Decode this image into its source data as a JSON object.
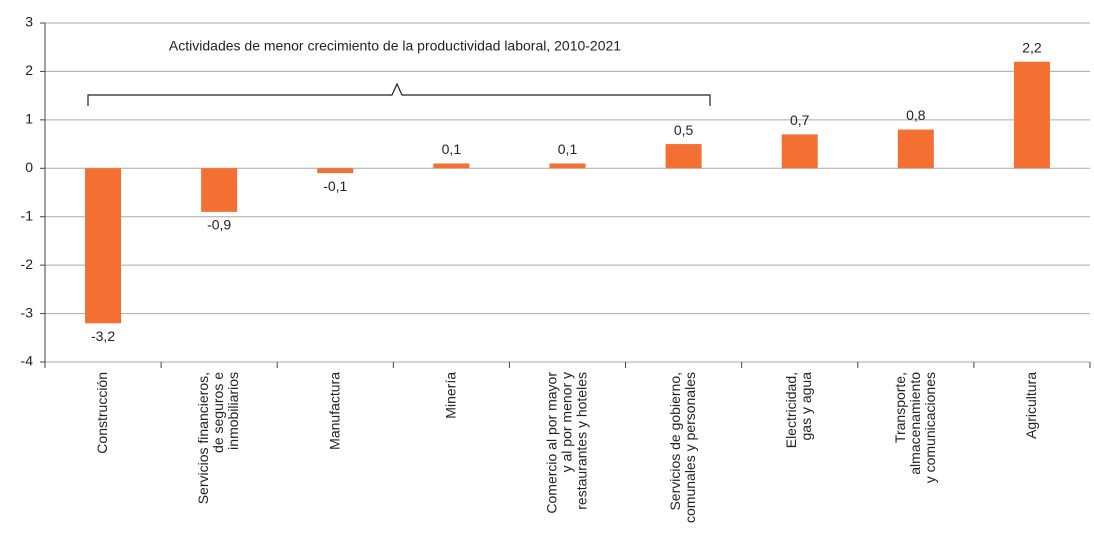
{
  "chart_data": {
    "type": "bar",
    "annotation": "Actividades de menor crecimiento de la productividad laboral, 2010-2021",
    "categories": [
      "Construcción",
      "Servicios financieros,\nde seguros e\ninmobiliarios",
      "Manufactura",
      "Minería",
      "Comercio al por mayor\ny al por menor y\nrestaurantes y hoteles",
      "Servicios de gobierno,\ncomunales y personales",
      "Electricidad,\ngas y agua",
      "Transporte,\nalmacenamiento\ny comunicaciones",
      "Agricultura"
    ],
    "values": [
      -3.2,
      -0.9,
      -0.1,
      0.1,
      0.1,
      0.5,
      0.7,
      0.8,
      2.2
    ],
    "value_labels": [
      "-3,2",
      "-0,9",
      "-0,1",
      "0,1",
      "0,1",
      "0,5",
      "0,7",
      "0,8",
      "2,2"
    ],
    "color": "#f36f32",
    "ylim": [
      -4,
      3
    ],
    "yticks": [
      -4,
      -3,
      -2,
      -1,
      0,
      1,
      2,
      3
    ],
    "grid": true
  }
}
